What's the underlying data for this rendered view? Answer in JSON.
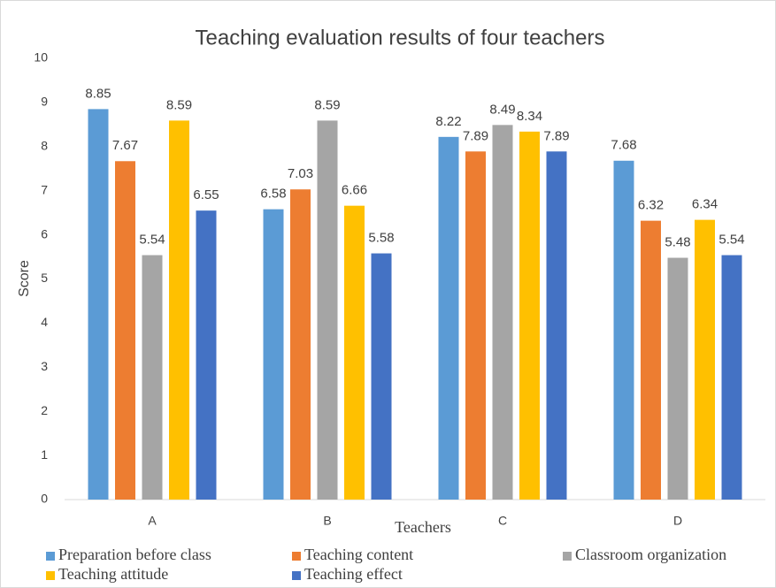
{
  "chart_data": {
    "type": "bar",
    "title": "Teaching evaluation results of four teachers",
    "x_label": "Teachers",
    "y_label": "Score",
    "categories": [
      "A",
      "B",
      "C",
      "D"
    ],
    "series": [
      {
        "name": "Preparation before class",
        "color": "#5b9bd5",
        "values": [
          8.85,
          6.58,
          8.22,
          7.68
        ]
      },
      {
        "name": "Teaching content",
        "color": "#ed7d31",
        "values": [
          7.67,
          7.03,
          7.89,
          6.32
        ]
      },
      {
        "name": "Classroom organization",
        "color": "#a5a5a5",
        "values": [
          5.54,
          8.59,
          8.49,
          5.48
        ]
      },
      {
        "name": "Teaching attitude",
        "color": "#ffc000",
        "values": [
          8.59,
          6.66,
          8.34,
          6.34
        ]
      },
      {
        "name": "Teaching effect",
        "color": "#4472c4",
        "values": [
          6.55,
          5.58,
          7.89,
          5.54
        ]
      }
    ],
    "ylim": [
      0,
      10
    ],
    "yticks": [
      0,
      1,
      2,
      3,
      4,
      5,
      6,
      7,
      8,
      9,
      10
    ],
    "grid": false,
    "legend": "bottom"
  }
}
